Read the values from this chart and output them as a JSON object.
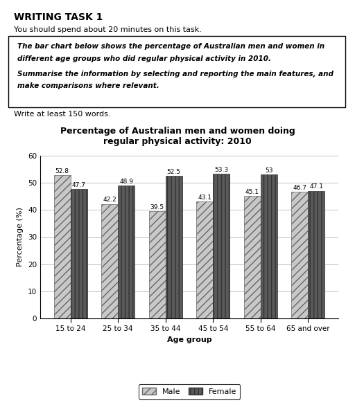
{
  "title_line1": "Percentage of Australian men and women doing",
  "title_line2": "regular physical activity: 2010",
  "categories": [
    "15 to 24",
    "25 to 34",
    "35 to 44",
    "45 to 54",
    "55 to 64",
    "65 and over"
  ],
  "male_values": [
    52.8,
    42.2,
    39.5,
    43.1,
    45.1,
    46.7
  ],
  "female_values": [
    47.7,
    48.9,
    52.5,
    53.3,
    53.0,
    47.1
  ],
  "ylabel": "Percentage (%)",
  "xlabel": "Age group",
  "ylim": [
    0,
    60
  ],
  "yticks": [
    0,
    10,
    20,
    30,
    40,
    50,
    60
  ],
  "bar_width": 0.35,
  "value_fontsize": 6.5,
  "axis_label_fontsize": 8,
  "tick_fontsize": 7.5,
  "title_fontsize": 9,
  "legend_labels": [
    "Male",
    "Female"
  ],
  "header_title": "WRITING TASK 1",
  "header_subtitle": "You should spend about 20 minutes on this task.",
  "box_line1": "The bar chart below shows the percentage of Australian men and women in",
  "box_line2": "different age groups who did regular physical activity in 2010.",
  "box_line3": "Summarise the information by selecting and reporting the main features, and",
  "box_line4": "make comparisons where relevant.",
  "footer_text": "Write at least 150 words.",
  "background_color": "#ffffff"
}
